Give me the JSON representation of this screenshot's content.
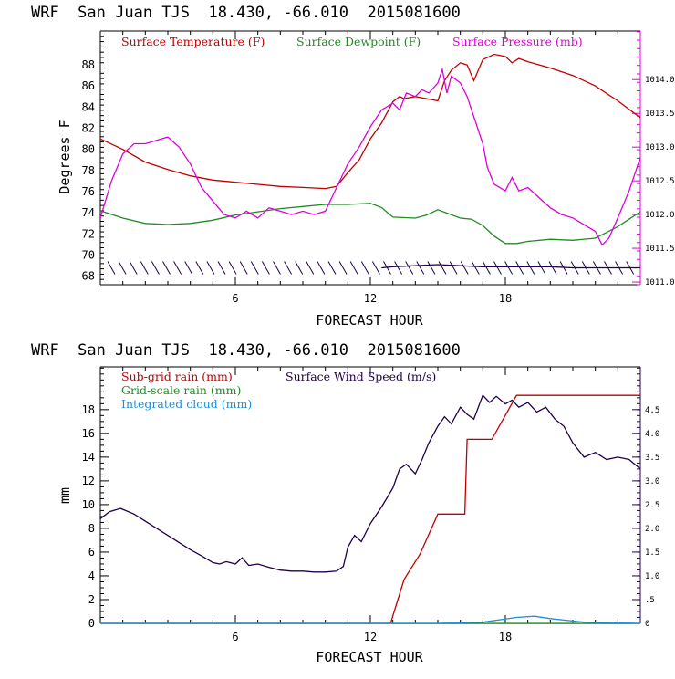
{
  "chart_data": [
    {
      "type": "line",
      "title": "WRF  San Juan TJS  18.430, -66.010  2015081600",
      "xlabel": "FORECAST HOUR",
      "ylabel": "Degrees F",
      "xlim": [
        0,
        24
      ],
      "ylim": [
        67.2,
        91.2
      ],
      "xticks": [
        6,
        12,
        18
      ],
      "yticks": [
        68,
        70,
        72,
        74,
        76,
        78,
        80,
        82,
        84,
        86,
        88
      ],
      "y2lim": [
        1010.96,
        1014.72
      ],
      "y2ticks": [
        "1011.0",
        "1011.5",
        "1012.0",
        "1012.5",
        "1013.0",
        "1013.5",
        "1014.0"
      ],
      "y2tick_values": [
        1011.0,
        1011.5,
        1012.0,
        1012.5,
        1013.0,
        1013.5,
        1014.0
      ],
      "legend_position": "top",
      "series": [
        {
          "name": "Surface Temperature (F)",
          "axis": "left",
          "color": "#c00000",
          "x": [
            0,
            1,
            2,
            3,
            4,
            5,
            6,
            7,
            8,
            9,
            10,
            10.5,
            11,
            11.5,
            12,
            12.5,
            13,
            13.3,
            13.5,
            14,
            14.5,
            15,
            15.3,
            15.6,
            16,
            16.3,
            16.6,
            17,
            17.5,
            18,
            18.3,
            18.6,
            19,
            20,
            21,
            22,
            23,
            24
          ],
          "values": [
            81.0,
            80.0,
            78.8,
            78.1,
            77.5,
            77.1,
            76.9,
            76.7,
            76.5,
            76.4,
            76.3,
            76.5,
            77.8,
            79.0,
            81.0,
            82.5,
            84.5,
            85.0,
            84.8,
            85.0,
            84.8,
            84.6,
            86.5,
            87.5,
            88.2,
            88.0,
            86.5,
            88.5,
            89.0,
            88.8,
            88.2,
            88.6,
            88.3,
            87.7,
            87.0,
            86.0,
            84.6,
            83.0
          ]
        },
        {
          "name": "Surface Dewpoint (F)",
          "axis": "left",
          "color": "#228b22",
          "x": [
            0,
            1,
            2,
            3,
            4,
            5,
            6,
            7,
            8,
            9,
            10,
            11,
            12,
            12.5,
            13,
            14,
            14.5,
            15,
            15.5,
            16,
            16.5,
            17,
            17.5,
            18,
            18.5,
            19,
            20,
            21,
            22,
            23,
            24
          ],
          "values": [
            74.2,
            73.5,
            73.0,
            72.9,
            73.0,
            73.3,
            73.8,
            74.1,
            74.4,
            74.6,
            74.8,
            74.8,
            74.9,
            74.5,
            73.6,
            73.5,
            73.8,
            74.3,
            73.9,
            73.5,
            73.4,
            72.8,
            71.8,
            71.1,
            71.1,
            71.3,
            71.5,
            71.4,
            71.6,
            72.7,
            74.1
          ]
        },
        {
          "name": "Surface Pressure (mb)",
          "axis": "right",
          "color": "#dd00dd",
          "x": [
            0,
            0.5,
            1,
            1.5,
            2,
            2.5,
            3,
            3.5,
            4,
            4.5,
            5,
            5.5,
            6,
            6.5,
            7,
            7.5,
            8,
            8.5,
            9,
            9.5,
            10,
            10.5,
            11,
            11.5,
            12,
            12.5,
            13,
            13.3,
            13.6,
            14,
            14.3,
            14.6,
            15,
            15.2,
            15.4,
            15.6,
            16,
            16.3,
            16.6,
            17,
            17.2,
            17.5,
            18,
            18.3,
            18.6,
            19,
            19.5,
            20,
            20.5,
            21,
            21.5,
            22,
            22.3,
            22.6,
            23,
            23.5,
            24
          ],
          "values": [
            1011.95,
            1012.5,
            1012.9,
            1013.05,
            1013.05,
            1013.1,
            1013.15,
            1013.0,
            1012.75,
            1012.4,
            1012.2,
            1012.0,
            1011.95,
            1012.05,
            1011.95,
            1012.1,
            1012.05,
            1012.0,
            1012.05,
            1012.0,
            1012.05,
            1012.4,
            1012.75,
            1013.0,
            1013.3,
            1013.55,
            1013.65,
            1013.55,
            1013.8,
            1013.75,
            1013.85,
            1013.8,
            1013.95,
            1014.15,
            1013.8,
            1014.05,
            1013.95,
            1013.75,
            1013.45,
            1013.05,
            1012.7,
            1012.45,
            1012.35,
            1012.55,
            1012.35,
            1012.4,
            1012.25,
            1012.1,
            1012.0,
            1011.95,
            1011.85,
            1011.75,
            1011.55,
            1011.65,
            1011.95,
            1012.35,
            1012.85
          ]
        },
        {
          "name": "",
          "axis": "left",
          "color": "#20004a",
          "x": [
            12.5,
            13,
            14,
            15,
            16,
            17,
            18,
            19,
            20,
            21,
            22,
            23,
            24
          ],
          "values": [
            68.8,
            68.9,
            69.0,
            69.1,
            69.0,
            68.9,
            68.9,
            68.9,
            68.9,
            68.8,
            68.8,
            68.8,
            68.8
          ]
        }
      ]
    },
    {
      "type": "line",
      "title": "WRF  San Juan TJS  18.430, -66.010  2015081600",
      "xlabel": "FORECAST HOUR",
      "ylabel": "mm",
      "xlim": [
        0,
        24
      ],
      "ylim": [
        0,
        21.6
      ],
      "xticks": [
        6,
        12,
        18
      ],
      "yticks": [
        0,
        2,
        4,
        6,
        8,
        10,
        12,
        14,
        16,
        18
      ],
      "y2lim": [
        0,
        5.4
      ],
      "y2ticks": [
        "0",
        ".5",
        "1.0",
        "1.5",
        "2.0",
        "2.5",
        "3.0",
        "3.5",
        "4.0",
        "4.5"
      ],
      "y2tick_values": [
        0,
        0.5,
        1.0,
        1.5,
        2.0,
        2.5,
        3.0,
        3.5,
        4.0,
        4.5
      ],
      "legend_position": "top-left",
      "series": [
        {
          "name": "Sub-grid rain (mm)",
          "axis": "left",
          "color": "#c00000",
          "x": [
            0,
            12.9,
            13.5,
            14.2,
            15,
            16.2,
            16.3,
            17.4,
            18.5,
            24
          ],
          "values": [
            0,
            0,
            3.7,
            5.8,
            9.2,
            9.2,
            15.5,
            15.5,
            19.2,
            19.2
          ]
        },
        {
          "name": "Grid-scale rain (mm)",
          "axis": "left",
          "color": "#228b22",
          "x": [
            0,
            24
          ],
          "values": [
            0,
            0
          ]
        },
        {
          "name": "Integrated cloud (mm)",
          "axis": "left",
          "color": "#1f8fd6",
          "x": [
            0,
            15,
            17,
            18.5,
            19.3,
            20,
            21.5,
            24
          ],
          "values": [
            0,
            0,
            0.1,
            0.5,
            0.6,
            0.4,
            0.1,
            0
          ]
        },
        {
          "name": "Surface Wind Speed (m/s)",
          "axis": "right",
          "color": "#20004a",
          "x": [
            0,
            0.4,
            0.9,
            1.5,
            2,
            3,
            4,
            4.5,
            5,
            5.3,
            5.6,
            6,
            6.3,
            6.6,
            7,
            7.5,
            8,
            8.5,
            9,
            9.5,
            10,
            10.5,
            10.8,
            11,
            11.3,
            11.6,
            12,
            12.5,
            13,
            13.3,
            13.6,
            14,
            14.3,
            14.6,
            15,
            15.3,
            15.6,
            16,
            16.3,
            16.6,
            17,
            17.3,
            17.6,
            18,
            18.3,
            18.6,
            19,
            19.4,
            19.8,
            20.2,
            20.6,
            21,
            21.5,
            22,
            22.5,
            23,
            23.5,
            24
          ],
          "values": [
            2.2,
            2.35,
            2.42,
            2.3,
            2.15,
            1.85,
            1.55,
            1.42,
            1.28,
            1.25,
            1.3,
            1.25,
            1.38,
            1.22,
            1.25,
            1.18,
            1.12,
            1.1,
            1.1,
            1.08,
            1.08,
            1.1,
            1.2,
            1.6,
            1.85,
            1.72,
            2.1,
            2.45,
            2.85,
            3.25,
            3.35,
            3.15,
            3.45,
            3.8,
            4.15,
            4.35,
            4.2,
            4.55,
            4.4,
            4.3,
            4.8,
            4.65,
            4.78,
            4.62,
            4.7,
            4.55,
            4.65,
            4.45,
            4.55,
            4.3,
            4.15,
            3.8,
            3.5,
            3.6,
            3.45,
            3.5,
            3.45,
            3.25
          ]
        }
      ]
    }
  ]
}
